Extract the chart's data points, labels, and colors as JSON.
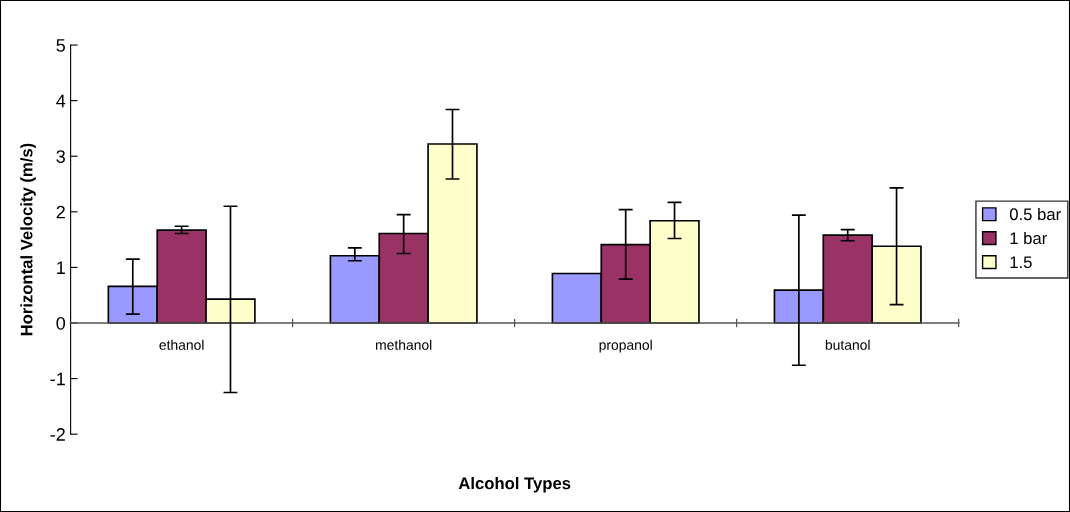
{
  "chart_data": {
    "type": "bar",
    "xlabel": "Alcohol Types",
    "ylabel": "Horizontal Velocity (m/s)",
    "categories": [
      "ethanol",
      "methanol",
      "propanol",
      "butanol"
    ],
    "series": [
      {
        "name": "0.5 bar",
        "color": "#9999ff",
        "values": [
          0.66,
          1.21,
          0.89,
          0.59
        ],
        "errors": [
          [
            0.16,
            1.15
          ],
          [
            1.12,
            1.35
          ],
          null,
          [
            -0.76,
            1.94
          ]
        ]
      },
      {
        "name": "1 bar",
        "color": "#993366",
        "values": [
          1.67,
          1.61,
          1.41,
          1.58
        ],
        "errors": [
          [
            1.61,
            1.74
          ],
          [
            1.25,
            1.95
          ],
          [
            0.79,
            2.04
          ],
          [
            1.48,
            1.68
          ]
        ]
      },
      {
        "name": "1.5",
        "color": "#ffffcc",
        "values": [
          0.43,
          3.22,
          1.84,
          1.38
        ],
        "errors": [
          [
            -1.25,
            2.1
          ],
          [
            2.59,
            3.84
          ],
          [
            1.52,
            2.17
          ],
          [
            0.33,
            2.43
          ]
        ]
      }
    ],
    "ylim": [
      -2,
      5
    ],
    "yticks": [
      -2,
      -1,
      0,
      1,
      2,
      3,
      4,
      5
    ],
    "grid": false,
    "legend": "right"
  }
}
